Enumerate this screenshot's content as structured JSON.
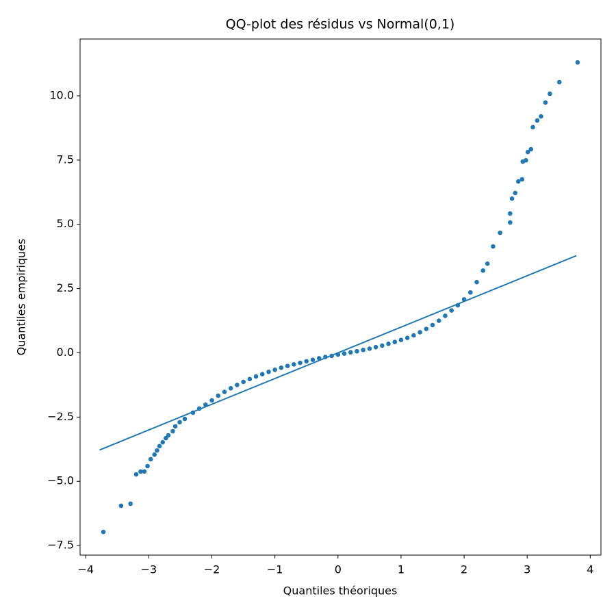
{
  "chart_data": {
    "type": "scatter",
    "title": "QQ-plot des résidus vs Normal(0,1)",
    "x_label": "Quantiles théoriques",
    "y_label": "Quantiles empiriques",
    "xlim": [
      -4.09,
      4.17
    ],
    "ylim": [
      -7.87,
      12.21
    ],
    "xticks": [
      {
        "value": -4,
        "label": "−4"
      },
      {
        "value": -3,
        "label": "−3"
      },
      {
        "value": -2,
        "label": "−2"
      },
      {
        "value": -1,
        "label": "−1"
      },
      0,
      1,
      2,
      3,
      4
    ],
    "yticks": [
      {
        "value": -7.5,
        "label": "−7.5"
      },
      {
        "value": -5,
        "label": "−5.0"
      },
      {
        "value": -2.5,
        "label": "−2.5"
      },
      {
        "value": 0,
        "label": "0.0"
      },
      2.5,
      {
        "value": 5,
        "label": "5.0"
      },
      7.5,
      {
        "value": 10,
        "label": "10.0"
      }
    ],
    "grid": false,
    "series": [
      {
        "type": "scatter",
        "color": "#1f77b4",
        "x": [
          -3.72,
          -3.44,
          -3.29,
          -3.2,
          -3.13,
          -3.07,
          -3.02,
          -2.97,
          -2.91,
          -2.87,
          -2.83,
          -2.78,
          -2.73,
          -2.69,
          -2.62,
          -2.58,
          -2.51,
          -2.43,
          -2.3,
          -2.2,
          -2.1,
          -2.0,
          -1.9,
          -1.8,
          -1.7,
          -1.6,
          -1.5,
          -1.4,
          -1.3,
          -1.2,
          -1.1,
          -1.0,
          -0.9,
          -0.8,
          -0.7,
          -0.6,
          -0.5,
          -0.4,
          -0.3,
          -0.2,
          -0.1,
          0.0,
          0.1,
          0.2,
          0.3,
          0.4,
          0.5,
          0.6,
          0.7,
          0.8,
          0.9,
          1.0,
          1.1,
          1.2,
          1.3,
          1.4,
          1.5,
          1.6,
          1.7,
          1.8,
          1.9,
          2.0,
          2.1,
          2.2,
          2.3,
          2.37,
          2.46,
          2.57,
          2.73,
          2.73,
          2.76,
          2.81,
          2.86,
          2.92,
          2.93,
          2.98,
          3.01,
          3.06,
          3.09,
          3.16,
          3.22,
          3.29,
          3.36,
          3.51,
          3.8
        ],
        "values": [
          -6.97,
          -5.95,
          -5.87,
          -4.73,
          -4.62,
          -4.62,
          -4.41,
          -4.14,
          -3.96,
          -3.8,
          -3.63,
          -3.48,
          -3.32,
          -3.21,
          -3.05,
          -2.86,
          -2.7,
          -2.57,
          -2.33,
          -2.17,
          -2.02,
          -1.85,
          -1.67,
          -1.52,
          -1.38,
          -1.25,
          -1.13,
          -1.02,
          -0.92,
          -0.83,
          -0.74,
          -0.66,
          -0.58,
          -0.51,
          -0.45,
          -0.39,
          -0.33,
          -0.27,
          -0.21,
          -0.16,
          -0.12,
          -0.07,
          -0.03,
          0.02,
          0.06,
          0.11,
          0.16,
          0.22,
          0.28,
          0.35,
          0.42,
          0.5,
          0.58,
          0.68,
          0.8,
          0.93,
          1.08,
          1.25,
          1.44,
          1.65,
          1.85,
          2.08,
          2.35,
          2.75,
          3.2,
          3.47,
          4.14,
          4.67,
          5.07,
          5.42,
          6.0,
          6.22,
          6.67,
          6.75,
          7.44,
          7.49,
          7.81,
          7.92,
          8.78,
          9.04,
          9.2,
          9.74,
          10.08,
          10.53,
          11.3
        ]
      },
      {
        "type": "line",
        "color": "#1f77b4",
        "x": [
          -3.78,
          3.78
        ],
        "values": [
          -3.78,
          3.78
        ]
      }
    ]
  }
}
